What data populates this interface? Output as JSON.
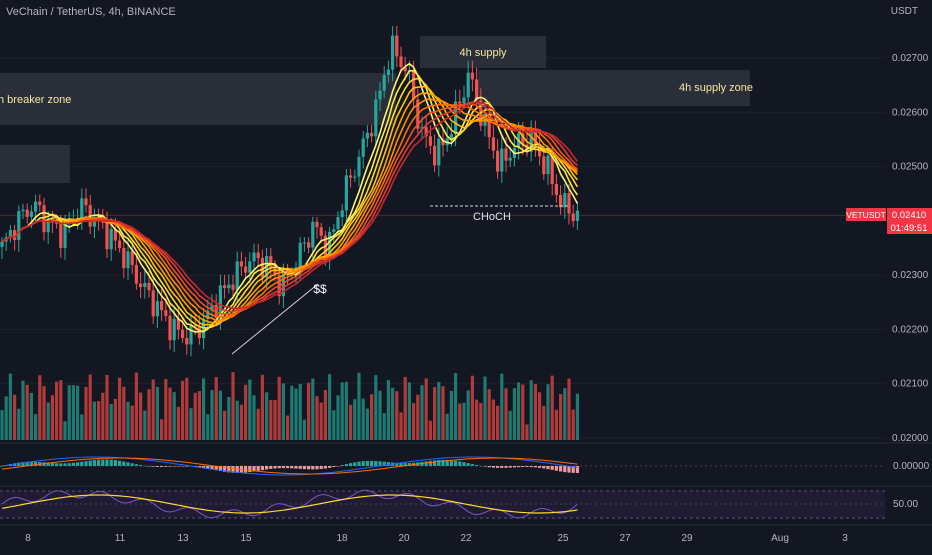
{
  "header": {
    "symbol": "VeChain / TetherUS, 4h, BINANCE",
    "currency": "USDT"
  },
  "colors": {
    "bg": "#131722",
    "up": "#26a69a",
    "down": "#ef5350",
    "upVol": "#1f7a72",
    "downVol": "#b23a3a",
    "zoneFill": "#2a2e39",
    "zoneText": "#f5e8a0",
    "axisText": "#b2b5be",
    "priceTag": "#f23645",
    "grid": "#1e222d"
  },
  "annotations": {
    "supply_4h": "4h supply",
    "supply_zone_4h": "4h supply zone",
    "breaker_zone": "h breaker zone",
    "choch": "CHoCH",
    "liquidity": "$$"
  },
  "price_tag": {
    "symbol": "VETUSDT",
    "price": "0.02410",
    "timer": "01:49:51"
  },
  "osc_labels": {
    "macd_zero": "0.00000",
    "rsi_mid": "50.00"
  },
  "chart_data": {
    "type": "candlestick",
    "title": "VeChain / TetherUS, 4h, BINANCE",
    "y_axis_ticks": [
      "0.02700",
      "0.02600",
      "0.02500",
      "0.02300",
      "0.02200",
      "0.02100",
      "0.02000"
    ],
    "x_axis_ticks": [
      "8",
      "11",
      "13",
      "15",
      "18",
      "20",
      "22",
      "25",
      "27",
      "29",
      "Aug",
      "3"
    ],
    "ylim": [
      0.02,
      0.0277
    ],
    "candles_close_approx": [
      0.0235,
      0.024,
      0.0243,
      0.02395,
      0.02375,
      0.0243,
      0.024,
      0.0237,
      0.0233,
      0.0228,
      0.0224,
      0.022,
      0.02185,
      0.02215,
      0.0226,
      0.023,
      0.0233,
      0.0232,
      0.0228,
      0.0233,
      0.0239,
      0.0235,
      0.0245,
      0.0252,
      0.026,
      0.0272,
      0.0268,
      0.0256,
      0.0252,
      0.0258,
      0.0267,
      0.0258,
      0.025,
      0.0254,
      0.0255,
      0.025,
      0.0243,
      0.0241
    ],
    "last_price": 0.0241,
    "macd_zero": 0.0,
    "rsi_mid": 50.0
  }
}
